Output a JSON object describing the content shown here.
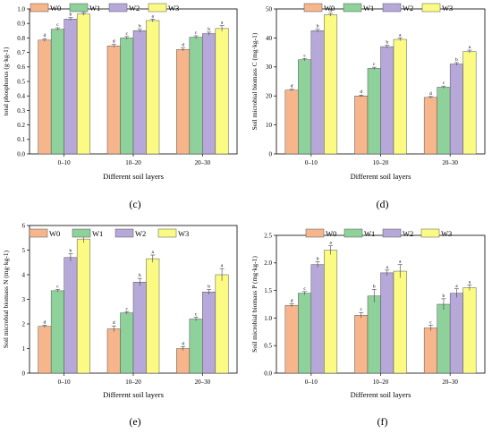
{
  "palette": {
    "W0": "#f7b58c",
    "W1": "#8fd19b",
    "W2": "#b6a8d9",
    "W3": "#fbfb84",
    "frame": "#000000",
    "error_bar": "#444444"
  },
  "chart_data": [
    {
      "panel_label": "(c)",
      "type": "bar",
      "categories": [
        "0–10",
        "10–20",
        "20–30"
      ],
      "xlabel": "Different soil layers",
      "ylabel": "total phosphorus (g·kg-1)",
      "ylim": [
        0,
        1.0
      ],
      "yticks": [
        "0.0",
        "0.1",
        "0.2",
        "0.3",
        "0.4",
        "0.5",
        "0.6",
        "0.7",
        "0.8",
        "0.9",
        "1.0"
      ],
      "legend_position": "top-left",
      "series": [
        {
          "name": "W0",
          "values": [
            0.785,
            0.745,
            0.72
          ],
          "errors": [
            0.01,
            0.01,
            0.01
          ],
          "letters": [
            "d",
            "d",
            "d"
          ]
        },
        {
          "name": "W1",
          "values": [
            0.86,
            0.8,
            0.805
          ],
          "errors": [
            0.01,
            0.01,
            0.01
          ],
          "letters": [
            "c",
            "c",
            "c"
          ]
        },
        {
          "name": "W2",
          "values": [
            0.93,
            0.85,
            0.83
          ],
          "errors": [
            0.01,
            0.01,
            0.01
          ],
          "letters": [
            "b",
            "b",
            "b"
          ]
        },
        {
          "name": "W3",
          "values": [
            0.965,
            0.92,
            0.865
          ],
          "errors": [
            0.01,
            0.01,
            0.02
          ],
          "letters": [
            "a",
            "a",
            "a"
          ]
        }
      ]
    },
    {
      "panel_label": "(d)",
      "type": "bar",
      "categories": [
        "0–10",
        "10–20",
        "20–30"
      ],
      "xlabel": "Different soil layers",
      "ylabel": "Soil microbial biomass C (mg·kg-1)",
      "ylim": [
        0,
        50
      ],
      "yticks": [
        "0",
        "10",
        "20",
        "30",
        "40",
        "50"
      ],
      "legend_position": "top",
      "series": [
        {
          "name": "W0",
          "values": [
            22,
            20,
            19.5
          ],
          "errors": [
            0.3,
            0.3,
            0.3
          ],
          "letters": [
            "d",
            "d",
            "d"
          ]
        },
        {
          "name": "W1",
          "values": [
            32.5,
            29.5,
            23
          ],
          "errors": [
            0.4,
            0.4,
            0.4
          ],
          "letters": [
            "c",
            "c",
            "c"
          ]
        },
        {
          "name": "W2",
          "values": [
            42.5,
            37,
            31
          ],
          "errors": [
            0.5,
            0.5,
            0.5
          ],
          "letters": [
            "b",
            "b",
            "b"
          ]
        },
        {
          "name": "W3",
          "values": [
            48,
            39.5,
            35.3
          ],
          "errors": [
            0.5,
            0.5,
            0.5
          ],
          "letters": [
            "a",
            "a",
            "a"
          ]
        }
      ]
    },
    {
      "panel_label": "(e)",
      "type": "bar",
      "categories": [
        "0–10",
        "10–20",
        "20–30"
      ],
      "xlabel": "Different soil layers",
      "ylabel": "Soil microbial biomass N (mg·kg-1)",
      "ylim": [
        0,
        6
      ],
      "yticks": [
        "0",
        "1",
        "2",
        "3",
        "4",
        "5",
        "6"
      ],
      "legend_position": "top",
      "series": [
        {
          "name": "W0",
          "values": [
            1.9,
            1.8,
            1.0
          ],
          "errors": [
            0.05,
            0.12,
            0.08
          ],
          "letters": [
            "d",
            "d",
            "d"
          ]
        },
        {
          "name": "W1",
          "values": [
            3.35,
            2.45,
            2.2
          ],
          "errors": [
            0.05,
            0.05,
            0.08
          ],
          "letters": [
            "c",
            "c",
            "c"
          ]
        },
        {
          "name": "W2",
          "values": [
            4.7,
            3.7,
            3.3
          ],
          "errors": [
            0.15,
            0.15,
            0.1
          ],
          "letters": [
            "b",
            "b",
            "b"
          ]
        },
        {
          "name": "W3",
          "values": [
            5.45,
            4.65,
            4.0
          ],
          "errors": [
            0.15,
            0.15,
            0.25
          ],
          "letters": [
            "a",
            "a",
            "a"
          ]
        }
      ]
    },
    {
      "panel_label": "(f)",
      "type": "bar",
      "categories": [
        "0–10",
        "10–20",
        "20–30"
      ],
      "xlabel": "Different soil layers",
      "ylabel": "Soil microbial biomass P (mg·kg-1)",
      "ylim": [
        0,
        2.5
      ],
      "yticks": [
        "0.0",
        "0.5",
        "1.0",
        "1.5",
        "2.0",
        "2.5"
      ],
      "legend_position": "top",
      "series": [
        {
          "name": "W0",
          "values": [
            1.23,
            1.05,
            0.82
          ],
          "errors": [
            0.03,
            0.05,
            0.05
          ],
          "letters": [
            "d",
            "c",
            "c"
          ]
        },
        {
          "name": "W1",
          "values": [
            1.45,
            1.4,
            1.25
          ],
          "errors": [
            0.03,
            0.12,
            0.1
          ],
          "letters": [
            "c",
            "b",
            "b"
          ]
        },
        {
          "name": "W2",
          "values": [
            1.97,
            1.82,
            1.45
          ],
          "errors": [
            0.05,
            0.05,
            0.08
          ],
          "letters": [
            "b",
            "a",
            "a"
          ]
        },
        {
          "name": "W3",
          "values": [
            2.23,
            1.85,
            1.55
          ],
          "errors": [
            0.08,
            0.12,
            0.05
          ],
          "letters": [
            "a",
            "a",
            "a"
          ]
        }
      ]
    }
  ]
}
